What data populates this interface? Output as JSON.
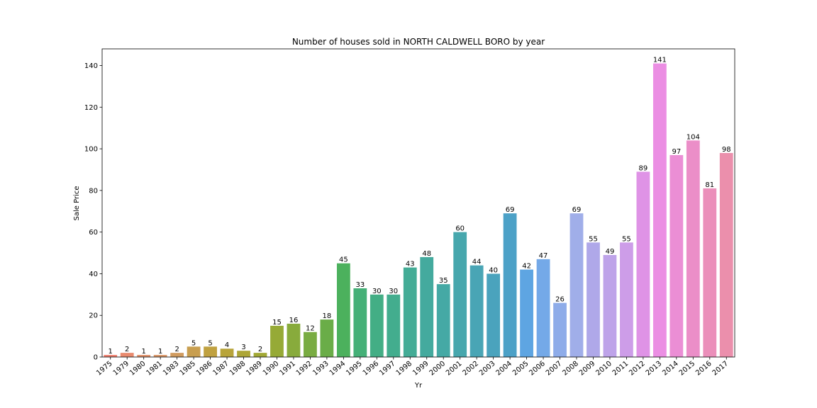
{
  "chart_data": {
    "type": "bar",
    "title": "Number of houses sold in NORTH CALDWELL BORO by year",
    "xlabel": "Yr",
    "ylabel": "Sale Price",
    "ylim": [
      0,
      148
    ],
    "yticks": [
      "0",
      "20",
      "40",
      "60",
      "80",
      "100",
      "120",
      "140"
    ],
    "grid": false,
    "categories": [
      "1975",
      "1979",
      "1980",
      "1981",
      "1983",
      "1985",
      "1986",
      "1987",
      "1988",
      "1989",
      "1990",
      "1991",
      "1992",
      "1993",
      "1994",
      "1995",
      "1996",
      "1997",
      "1998",
      "1999",
      "2000",
      "2001",
      "2002",
      "2003",
      "2004",
      "2005",
      "2006",
      "2007",
      "2008",
      "2009",
      "2010",
      "2011",
      "2012",
      "2013",
      "2014",
      "2015",
      "2016",
      "2017"
    ],
    "values": [
      1,
      2,
      1,
      1,
      2,
      5,
      5,
      4,
      3,
      2,
      15,
      16,
      12,
      18,
      45,
      33,
      30,
      30,
      43,
      48,
      35,
      60,
      44,
      40,
      69,
      42,
      47,
      26,
      69,
      55,
      49,
      55,
      89,
      141,
      97,
      104,
      81,
      98
    ],
    "value_labels": [
      "1",
      "2",
      "1",
      "1",
      "2",
      "5",
      "5",
      "4",
      "3",
      "2",
      "15",
      "16",
      "12",
      "18",
      "45",
      "33",
      "30",
      "30",
      "43",
      "48",
      "35",
      "60",
      "44",
      "40",
      "69",
      "42",
      "47",
      "26",
      "69",
      "55",
      "49",
      "55",
      "89",
      "141",
      "97",
      "104",
      "81",
      "98"
    ],
    "colors": [
      "#f0806f",
      "#e98a6e",
      "#e1916b",
      "#d99668",
      "#d09b5f",
      "#c89e4f",
      "#c0a140",
      "#b8a43a",
      "#ada637",
      "#a2a835",
      "#96aa36",
      "#88ab3c",
      "#79ac42",
      "#6aad48",
      "#4cb15d",
      "#45b077",
      "#43ae85",
      "#43ad8e",
      "#43ac96",
      "#44aa9e",
      "#45a9a5",
      "#47a7ad",
      "#49a5b5",
      "#4aa3bd",
      "#4ca1c7",
      "#5ea5e2",
      "#74a9e8",
      "#8eace9",
      "#a0aee9",
      "#afa8e9",
      "#bea3e9",
      "#cd9de8",
      "#df93e6",
      "#eb8ee3",
      "#eb8ed5",
      "#eb8ec8",
      "#eb8fba",
      "#eb8fac"
    ]
  }
}
